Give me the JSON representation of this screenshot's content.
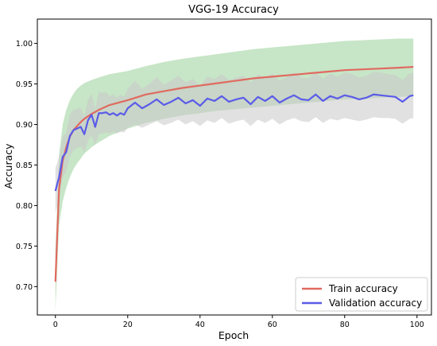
{
  "chart_data": {
    "type": "line",
    "title": "VGG-19 Accuracy",
    "xlabel": "Epoch",
    "ylabel": "Accuracy",
    "xlim": [
      -5,
      104
    ],
    "ylim": [
      0.665,
      1.03
    ],
    "xticks": [
      0,
      20,
      40,
      60,
      80,
      100
    ],
    "yticks": [
      0.7,
      0.75,
      0.8,
      0.85,
      0.9,
      0.95,
      1.0
    ],
    "legend_position": "lower-right",
    "grid": false,
    "series": [
      {
        "name": "Train accuracy",
        "color": "#e06a60",
        "band_color": "#8fcc8f",
        "x": [
          0,
          1,
          2,
          3,
          4,
          5,
          6,
          7,
          8,
          9,
          10,
          12,
          15,
          20,
          25,
          30,
          35,
          40,
          45,
          50,
          55,
          60,
          65,
          70,
          75,
          80,
          85,
          90,
          95,
          99
        ],
        "y": [
          0.706,
          0.82,
          0.855,
          0.872,
          0.885,
          0.893,
          0.898,
          0.903,
          0.907,
          0.91,
          0.913,
          0.918,
          0.924,
          0.93,
          0.937,
          0.941,
          0.945,
          0.948,
          0.951,
          0.954,
          0.957,
          0.959,
          0.961,
          0.963,
          0.965,
          0.967,
          0.968,
          0.969,
          0.97,
          0.971
        ],
        "band_low": [
          0.67,
          0.775,
          0.805,
          0.822,
          0.835,
          0.845,
          0.852,
          0.858,
          0.864,
          0.868,
          0.872,
          0.878,
          0.886,
          0.895,
          0.902,
          0.907,
          0.911,
          0.914,
          0.917,
          0.919,
          0.921,
          0.923,
          0.925,
          0.927,
          0.929,
          0.931,
          0.932,
          0.933,
          0.934,
          0.935
        ],
        "band_high": [
          0.745,
          0.862,
          0.9,
          0.918,
          0.93,
          0.938,
          0.944,
          0.948,
          0.951,
          0.953,
          0.955,
          0.958,
          0.962,
          0.966,
          0.972,
          0.977,
          0.981,
          0.984,
          0.987,
          0.99,
          0.993,
          0.995,
          0.997,
          0.999,
          1.001,
          1.003,
          1.004,
          1.005,
          1.006,
          1.006
        ]
      },
      {
        "name": "Validation accuracy",
        "color": "#5b5be8",
        "band_color": "#c8c8c8",
        "x": [
          0,
          1,
          2,
          3,
          4,
          5,
          6,
          7,
          8,
          9,
          10,
          11,
          12,
          13,
          14,
          15,
          16,
          17,
          18,
          19,
          20,
          22,
          24,
          26,
          28,
          30,
          32,
          34,
          36,
          38,
          40,
          42,
          44,
          46,
          48,
          50,
          52,
          54,
          56,
          58,
          60,
          62,
          64,
          66,
          68,
          70,
          72,
          74,
          76,
          78,
          80,
          82,
          84,
          86,
          88,
          90,
          92,
          94,
          96,
          98,
          99
        ],
        "y": [
          0.818,
          0.835,
          0.86,
          0.866,
          0.886,
          0.893,
          0.895,
          0.897,
          0.888,
          0.905,
          0.912,
          0.897,
          0.914,
          0.914,
          0.915,
          0.912,
          0.914,
          0.911,
          0.914,
          0.912,
          0.92,
          0.927,
          0.92,
          0.925,
          0.931,
          0.924,
          0.928,
          0.933,
          0.926,
          0.93,
          0.923,
          0.932,
          0.929,
          0.935,
          0.928,
          0.931,
          0.933,
          0.925,
          0.934,
          0.929,
          0.935,
          0.927,
          0.932,
          0.936,
          0.931,
          0.93,
          0.937,
          0.929,
          0.935,
          0.932,
          0.936,
          0.934,
          0.931,
          0.933,
          0.937,
          0.936,
          0.935,
          0.934,
          0.928,
          0.935,
          0.936
        ],
        "band_low": [
          0.79,
          0.81,
          0.835,
          0.842,
          0.86,
          0.868,
          0.871,
          0.873,
          0.866,
          0.88,
          0.886,
          0.875,
          0.888,
          0.889,
          0.89,
          0.889,
          0.891,
          0.889,
          0.891,
          0.89,
          0.896,
          0.9,
          0.896,
          0.9,
          0.904,
          0.899,
          0.902,
          0.906,
          0.9,
          0.904,
          0.898,
          0.905,
          0.902,
          0.908,
          0.901,
          0.904,
          0.906,
          0.898,
          0.906,
          0.902,
          0.907,
          0.9,
          0.905,
          0.908,
          0.904,
          0.903,
          0.909,
          0.902,
          0.907,
          0.905,
          0.908,
          0.906,
          0.904,
          0.906,
          0.909,
          0.908,
          0.908,
          0.907,
          0.901,
          0.907,
          0.908
        ],
        "band_high": [
          0.846,
          0.86,
          0.885,
          0.89,
          0.912,
          0.918,
          0.919,
          0.921,
          0.91,
          0.93,
          0.938,
          0.919,
          0.94,
          0.939,
          0.94,
          0.935,
          0.937,
          0.933,
          0.937,
          0.934,
          0.944,
          0.954,
          0.944,
          0.95,
          0.958,
          0.949,
          0.954,
          0.96,
          0.952,
          0.956,
          0.948,
          0.959,
          0.956,
          0.962,
          0.955,
          0.958,
          0.96,
          0.952,
          0.962,
          0.956,
          0.963,
          0.954,
          0.959,
          0.964,
          0.958,
          0.957,
          0.965,
          0.956,
          0.963,
          0.959,
          0.964,
          0.962,
          0.958,
          0.96,
          0.965,
          0.964,
          0.962,
          0.961,
          0.955,
          0.963,
          0.964
        ]
      }
    ]
  }
}
